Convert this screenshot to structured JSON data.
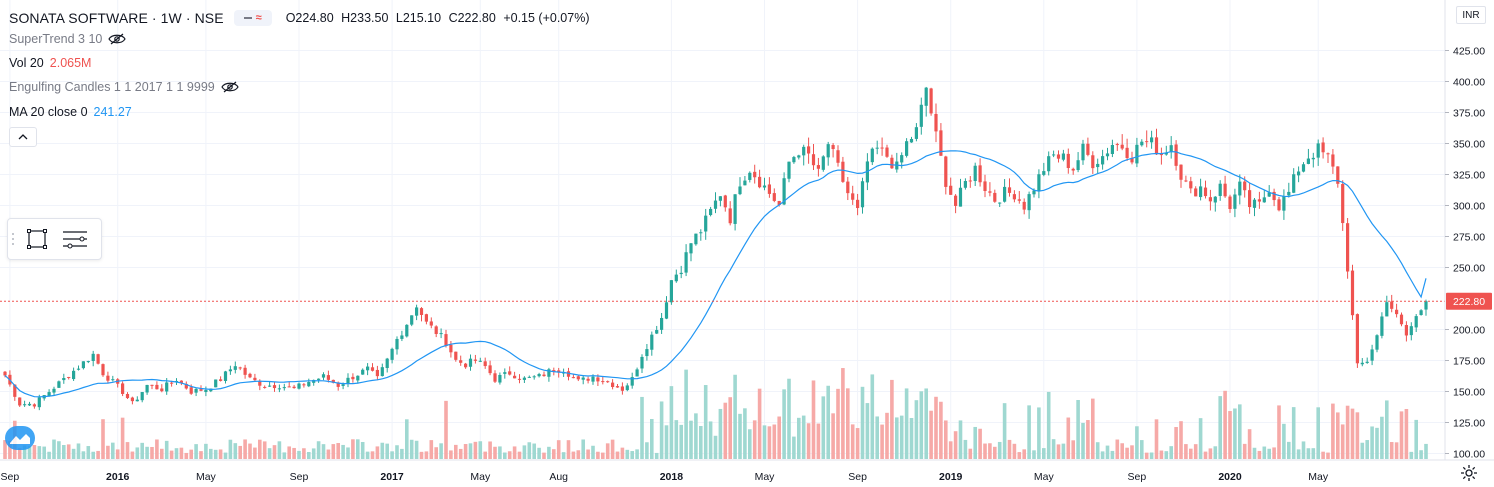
{
  "header": {
    "symbol": "SONATA SOFTWARE · 1W · NSE",
    "ohlc": {
      "o": "O224.80",
      "h": "H233.50",
      "l": "L215.10",
      "c": "C222.80",
      "change": "+0.15 (+0.07%)"
    }
  },
  "indicators": [
    {
      "name": "SuperTrend 3 10",
      "value": "",
      "hidden": true
    },
    {
      "name": "Vol 20",
      "value": "2.065M",
      "hidden": false
    },
    {
      "name": "Engulfing Candles 1 1 2017 1 1 9999",
      "value": "",
      "hidden": true
    },
    {
      "name": "MA 20 close 0",
      "value": "241.27",
      "hidden": false
    }
  ],
  "currency": "INR",
  "last_price_label": "222.80",
  "colors": {
    "up": "#26a69a",
    "down": "#ef5350",
    "ma": "#2196f3",
    "vol_up": "#9fd8d1",
    "vol_down": "#f6a9a7",
    "grid": "#f0f3fa",
    "last_line": "#ef5350"
  },
  "chart_data": {
    "type": "candlestick",
    "interval": "1W",
    "y_axis_ticks": [
      "425.00",
      "400.00",
      "375.00",
      "350.00",
      "325.00",
      "300.00",
      "275.00",
      "250.00",
      "200.00",
      "175.00",
      "150.00",
      "125.00",
      "100.00"
    ],
    "ylim": [
      95,
      440
    ],
    "x_axis_labels": [
      "Sep",
      "2016",
      "May",
      "Sep",
      "2017",
      "May",
      "Aug",
      "2018",
      "May",
      "Sep",
      "2019",
      "May",
      "Sep",
      "2020",
      "May"
    ],
    "x_label_index": [
      1,
      23,
      41,
      60,
      79,
      97,
      113,
      136,
      155,
      174,
      193,
      212,
      231,
      250,
      268
    ],
    "last_close": 222.8,
    "ma_last": 241.27,
    "volume_last": "2.065M",
    "anchors": [
      [
        0,
        163
      ],
      [
        3,
        140
      ],
      [
        6,
        140
      ],
      [
        9,
        150
      ],
      [
        12,
        160
      ],
      [
        15,
        170
      ],
      [
        18,
        180
      ],
      [
        20,
        165
      ],
      [
        24,
        150
      ],
      [
        26,
        140
      ],
      [
        29,
        155
      ],
      [
        32,
        152
      ],
      [
        35,
        160
      ],
      [
        38,
        150
      ],
      [
        41,
        152
      ],
      [
        44,
        160
      ],
      [
        47,
        172
      ],
      [
        50,
        160
      ],
      [
        53,
        155
      ],
      [
        56,
        155
      ],
      [
        59,
        152
      ],
      [
        62,
        158
      ],
      [
        65,
        162
      ],
      [
        68,
        155
      ],
      [
        71,
        162
      ],
      [
        74,
        168
      ],
      [
        76,
        160
      ],
      [
        78,
        175
      ],
      [
        80,
        192
      ],
      [
        82,
        205
      ],
      [
        84,
        220
      ],
      [
        86,
        205
      ],
      [
        88,
        198
      ],
      [
        90,
        190
      ],
      [
        92,
        175
      ],
      [
        94,
        172
      ],
      [
        96,
        175
      ],
      [
        98,
        170
      ],
      [
        100,
        160
      ],
      [
        103,
        165
      ],
      [
        106,
        160
      ],
      [
        109,
        162
      ],
      [
        112,
        168
      ],
      [
        114,
        168
      ],
      [
        117,
        158
      ],
      [
        120,
        162
      ],
      [
        123,
        158
      ],
      [
        126,
        152
      ],
      [
        128,
        160
      ],
      [
        130,
        180
      ],
      [
        132,
        195
      ],
      [
        134,
        210
      ],
      [
        136,
        240
      ],
      [
        138,
        250
      ],
      [
        140,
        270
      ],
      [
        142,
        280
      ],
      [
        144,
        295
      ],
      [
        146,
        310
      ],
      [
        148,
        290
      ],
      [
        150,
        320
      ],
      [
        152,
        330
      ],
      [
        154,
        320
      ],
      [
        156,
        310
      ],
      [
        158,
        300
      ],
      [
        160,
        335
      ],
      [
        162,
        345
      ],
      [
        164,
        340
      ],
      [
        166,
        325
      ],
      [
        168,
        350
      ],
      [
        170,
        330
      ],
      [
        172,
        310
      ],
      [
        174,
        295
      ],
      [
        176,
        335
      ],
      [
        178,
        345
      ],
      [
        180,
        340
      ],
      [
        182,
        330
      ],
      [
        184,
        350
      ],
      [
        186,
        360
      ],
      [
        188,
        395
      ],
      [
        190,
        355
      ],
      [
        192,
        320
      ],
      [
        194,
        300
      ],
      [
        196,
        318
      ],
      [
        198,
        330
      ],
      [
        200,
        315
      ],
      [
        202,
        305
      ],
      [
        204,
        310
      ],
      [
        206,
        310
      ],
      [
        208,
        300
      ],
      [
        210,
        315
      ],
      [
        212,
        330
      ],
      [
        214,
        340
      ],
      [
        216,
        338
      ],
      [
        218,
        330
      ],
      [
        220,
        345
      ],
      [
        222,
        335
      ],
      [
        224,
        340
      ],
      [
        226,
        350
      ],
      [
        228,
        348
      ],
      [
        230,
        340
      ],
      [
        232,
        352
      ],
      [
        234,
        350
      ],
      [
        236,
        342
      ],
      [
        238,
        350
      ],
      [
        240,
        325
      ],
      [
        242,
        310
      ],
      [
        244,
        315
      ],
      [
        246,
        305
      ],
      [
        248,
        315
      ],
      [
        250,
        300
      ],
      [
        252,
        315
      ],
      [
        254,
        300
      ],
      [
        256,
        300
      ],
      [
        258,
        315
      ],
      [
        260,
        300
      ],
      [
        262,
        310
      ],
      [
        264,
        330
      ],
      [
        266,
        340
      ],
      [
        268,
        345
      ],
      [
        270,
        338
      ],
      [
        272,
        320
      ],
      [
        274,
        250
      ],
      [
        276,
        170
      ],
      [
        278,
        175
      ],
      [
        280,
        195
      ],
      [
        282,
        225
      ],
      [
        284,
        210
      ],
      [
        286,
        195
      ],
      [
        288,
        210
      ],
      [
        290,
        222.8
      ]
    ]
  }
}
